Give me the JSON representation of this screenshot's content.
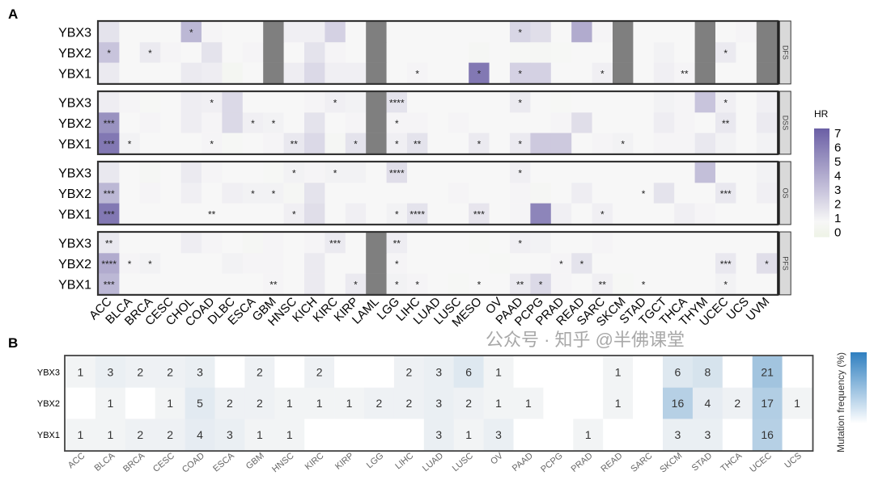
{
  "panel_labels": {
    "a": "A",
    "b": "B"
  },
  "watermark": "公众号 · 知乎 @半佛课堂",
  "chart_data": [
    {
      "type": "heatmap",
      "panel": "A",
      "legend": {
        "title": "HR",
        "ticks": [
          "7",
          "6",
          "5",
          "4",
          "3",
          "2",
          "1",
          "0"
        ],
        "range": [
          0,
          7
        ],
        "low_color": "#eef3e6",
        "mid_color": "#f7f7f7",
        "high_color": "#6a5fa5",
        "na_color": "#7f7f7f"
      },
      "columns": [
        "ACC",
        "BLCA",
        "BRCA",
        "CESC",
        "CHOL",
        "COAD",
        "DLBC",
        "ESCA",
        "GBM",
        "HNSC",
        "KICH",
        "KIRC",
        "KIRP",
        "LAML",
        "LGG",
        "LIHC",
        "LUAD",
        "LUSC",
        "MESO",
        "OV",
        "PAAD",
        "PCPG",
        "PRAD",
        "READ",
        "SARC",
        "SKCM",
        "STAD",
        "TGCT",
        "THCA",
        "THYM",
        "UCEC",
        "UCS",
        "UVM"
      ],
      "facets": [
        {
          "name": "DFS",
          "rows": [
            {
              "gene": "YBX3",
              "hr": [
                1.8,
                1,
                1,
                1,
                3.5,
                1.1,
                1,
                1,
                null,
                1.3,
                1.3,
                2.5,
                1,
                null,
                1,
                1,
                1,
                1,
                1,
                1,
                2.3,
                2,
                1,
                4,
                1.1,
                null,
                1,
                1,
                1,
                null,
                1,
                1.1,
                null
              ],
              "stars": {
                "CHOL": "*",
                "PAAD": "*"
              }
            },
            {
              "gene": "YBX2",
              "hr": [
                3,
                1,
                1.5,
                1.1,
                1,
                1.8,
                1,
                1.1,
                null,
                1,
                1.8,
                1.1,
                1,
                null,
                1,
                1,
                1,
                1,
                0.8,
                1,
                0.9,
                0.8,
                0.9,
                1,
                1,
                null,
                1,
                1.2,
                1,
                null,
                1.5,
                1,
                null
              ],
              "stars": {
                "ACC": "*",
                "BRCA": "*",
                "UCEC": "*"
              }
            },
            {
              "gene": "YBX1",
              "hr": [
                1.5,
                1,
                1,
                1,
                1.5,
                1.4,
                0.7,
                1,
                null,
                1.4,
                2.2,
                1.3,
                1.3,
                null,
                1,
                1.1,
                1,
                1,
                6,
                1,
                2.5,
                2.5,
                1,
                1,
                1.3,
                null,
                1,
                1.3,
                1.1,
                null,
                1,
                1,
                null
              ],
              "stars": {
                "LIHC": "*",
                "MESO": "*",
                "PAAD": "*",
                "SARC": "*",
                "THCA": "**"
              }
            }
          ]
        },
        {
          "name": "DSS",
          "rows": [
            {
              "gene": "YBX3",
              "hr": [
                1.4,
                1.1,
                0.9,
                1,
                1.4,
                1.3,
                2.2,
                1,
                1,
                1,
                1.1,
                1.3,
                1.2,
                null,
                1.8,
                1,
                1,
                1,
                1,
                1,
                1.5,
                1,
                0.9,
                1,
                1,
                1,
                1,
                1.2,
                1.1,
                3,
                1.3,
                1,
                1.3
              ],
              "stars": {
                "COAD": "*",
                "KIRC": "*",
                "LGG": "****",
                "PAAD": "*",
                "UCEC": "*"
              }
            },
            {
              "gene": "YBX2",
              "hr": [
                5,
                1,
                1.1,
                1,
                1.4,
                1.1,
                2.2,
                1.3,
                1.2,
                1,
                1.8,
                1,
                1.1,
                null,
                1.1,
                1.1,
                1,
                1.1,
                1,
                1,
                1,
                1,
                1.1,
                2,
                1,
                1,
                1,
                1.4,
                1.1,
                1,
                1.6,
                1,
                1.5
              ],
              "stars": {
                "ACC": "***",
                "ESCA": "*",
                "GBM": "*",
                "LGG": "*",
                "UCEC": "**"
              }
            },
            {
              "gene": "YBX1",
              "hr": [
                6,
                1.2,
                1,
                1,
                1,
                1.1,
                0.9,
                1,
                1.1,
                1.6,
                2.2,
                0.8,
                1.8,
                null,
                1.3,
                1.8,
                1,
                1,
                1.5,
                1,
                1.5,
                2.8,
                2.8,
                1,
                1.1,
                1.2,
                1,
                1.1,
                1.1,
                1.6,
                1.2,
                1,
                1.2
              ],
              "stars": {
                "ACC": "***",
                "BLCA": "*",
                "COAD": "*",
                "HNSC": "**",
                "KIRP": "*",
                "LGG": "*",
                "LIHC": "**",
                "MESO": "*",
                "PAAD": "*",
                "SKCM": "*"
              }
            }
          ]
        },
        {
          "name": "OS",
          "rows": [
            {
              "gene": "YBX3",
              "hr": [
                1.6,
                1,
                0.8,
                1,
                1.5,
                1.1,
                1,
                1,
                0.9,
                1.2,
                1.1,
                1.2,
                1.2,
                1,
                2,
                1,
                1,
                1,
                1,
                1,
                1.3,
                1,
                1,
                1,
                1,
                1,
                1,
                1,
                1,
                3.2,
                1,
                1,
                1.2
              ],
              "stars": {
                "HNSC": "*",
                "KIRC": "*",
                "LGG": "****",
                "PAAD": "*"
              }
            },
            {
              "gene": "YBX2",
              "hr": [
                3.5,
                1,
                1.1,
                1,
                1.3,
                1,
                1.3,
                1.2,
                1.2,
                0.8,
                1.8,
                1,
                1,
                1,
                1,
                1,
                1,
                1.1,
                1,
                1,
                1.1,
                0.8,
                1,
                1.4,
                1,
                1,
                1,
                1.8,
                1,
                1,
                1.6,
                1,
                1.3
              ],
              "stars": {
                "ACC": "***",
                "ESCA": "*",
                "GBM": "*",
                "STAD": "*",
                "UCEC": "***"
              }
            },
            {
              "gene": "YBX1",
              "hr": [
                6,
                1,
                1,
                1,
                1,
                1,
                1,
                1,
                1,
                1.3,
                2,
                1,
                1.3,
                1,
                1.2,
                1.8,
                1,
                1,
                1.7,
                1,
                1.1,
                5.5,
                1.3,
                1,
                1.3,
                1,
                1,
                1,
                1.3,
                1.1,
                1,
                1,
                1
              ],
              "stars": {
                "ACC": "***",
                "COAD": "**",
                "HNSC": "*",
                "LGG": "*",
                "LIHC": "****",
                "MESO": "***",
                "SARC": "*"
              }
            }
          ]
        },
        {
          "name": "PFS",
          "rows": [
            {
              "gene": "YBX3",
              "hr": [
                1.6,
                1,
                1,
                1,
                1.4,
                1.1,
                1,
                0.8,
                1.1,
                1,
                1.1,
                1.5,
                1,
                null,
                1.4,
                1,
                1,
                1,
                0.9,
                1,
                1.3,
                1.2,
                1,
                1,
                1.1,
                1,
                1,
                1,
                1,
                1,
                1,
                1,
                1
              ],
              "stars": {
                "ACC": "**",
                "KIRC": "***",
                "LGG": "**",
                "PAAD": "*"
              }
            },
            {
              "gene": "YBX2",
              "hr": [
                4,
                1.1,
                1.2,
                1,
                1,
                1,
                1.2,
                1.1,
                1.1,
                1,
                1.5,
                1,
                1,
                null,
                1.1,
                1,
                1,
                1,
                1,
                0.9,
                1,
                1,
                1.1,
                1.8,
                1,
                1,
                1,
                1,
                1,
                1,
                1.6,
                1,
                2
              ],
              "stars": {
                "ACC": "****",
                "BLCA": "*",
                "BRCA": "*",
                "LGG": "*",
                "PRAD": "*",
                "READ": "*",
                "UCEC": "***",
                "UVM": "*"
              }
            },
            {
              "gene": "YBX1",
              "hr": [
                3.5,
                1,
                1,
                1,
                1,
                1,
                1,
                1,
                1.1,
                1,
                1.5,
                1,
                1.5,
                null,
                1.2,
                1.1,
                1,
                0.9,
                1,
                1,
                1.5,
                2.2,
                1.1,
                1,
                1.3,
                0.9,
                1,
                1,
                1,
                1,
                1.2,
                1,
                1
              ],
              "stars": {
                "ACC": "***",
                "GBM": "**",
                "KIRP": "*",
                "LGG": "*",
                "LIHC": "*",
                "MESO": "*",
                "PAAD": "**",
                "PCPG": "*",
                "SARC": "**",
                "STAD": "*",
                "UCEC": "*"
              }
            }
          ]
        }
      ]
    },
    {
      "type": "heatmap",
      "panel": "B",
      "legend": {
        "title": "Mutation frequency (%)",
        "low_color": "#f6f6f6",
        "high_color": "#2f7fc0"
      },
      "columns": [
        "ACC",
        "BLCA",
        "BRCA",
        "CESC",
        "COAD",
        "ESCA",
        "GBM",
        "HNSC",
        "KIRC",
        "KIRP",
        "LGG",
        "LIHC",
        "LUAD",
        "LUSC",
        "OV",
        "PAAD",
        "PCPG",
        "PRAD",
        "READ",
        "SARC",
        "SKCM",
        "STAD",
        "THCA",
        "UCEC",
        "UCS"
      ],
      "rows": [
        {
          "gene": "YBX3",
          "values": [
            1,
            3,
            2,
            2,
            3,
            null,
            2,
            null,
            2,
            null,
            null,
            2,
            3,
            6,
            1,
            null,
            null,
            null,
            1,
            null,
            6,
            8,
            null,
            21,
            null
          ]
        },
        {
          "gene": "YBX2",
          "values": [
            null,
            1,
            null,
            1,
            5,
            2,
            2,
            1,
            1,
            1,
            2,
            2,
            3,
            2,
            1,
            1,
            null,
            null,
            1,
            null,
            16,
            4,
            2,
            17,
            1
          ]
        },
        {
          "gene": "YBX1",
          "values": [
            1,
            1,
            2,
            2,
            4,
            3,
            1,
            1,
            null,
            null,
            null,
            null,
            3,
            1,
            3,
            null,
            null,
            1,
            null,
            null,
            3,
            3,
            null,
            16,
            null
          ]
        }
      ]
    }
  ]
}
